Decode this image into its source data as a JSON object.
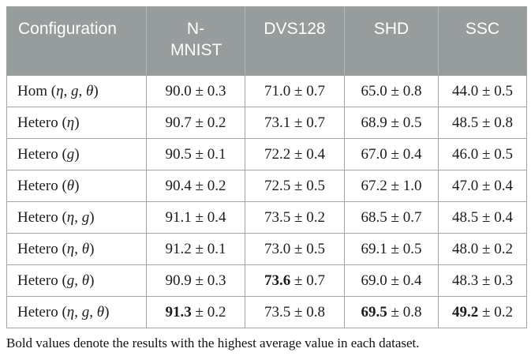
{
  "colors": {
    "header_bg": "#979c9d",
    "header_text": "#ffffff",
    "cell_border": "#a2a2a2",
    "body_text": "#1c1c1c"
  },
  "chart_data": {
    "type": "table",
    "title": "",
    "columns": [
      "Configuration",
      "N-MNIST",
      "DVS128",
      "SHD",
      "SSC"
    ],
    "plus_minus": "±",
    "rows": [
      {
        "config_name": "Hom",
        "config_params": [
          "η",
          "g",
          "θ"
        ],
        "values": [
          {
            "mean": "90.0",
            "err": "0.3",
            "bold": false
          },
          {
            "mean": "71.0",
            "err": "0.7",
            "bold": false
          },
          {
            "mean": "65.0",
            "err": "0.8",
            "bold": false
          },
          {
            "mean": "44.0",
            "err": "0.5",
            "bold": false
          }
        ]
      },
      {
        "config_name": "Hetero",
        "config_params": [
          "η"
        ],
        "values": [
          {
            "mean": "90.7",
            "err": "0.2",
            "bold": false
          },
          {
            "mean": "73.1",
            "err": "0.7",
            "bold": false
          },
          {
            "mean": "68.9",
            "err": "0.5",
            "bold": false
          },
          {
            "mean": "48.5",
            "err": "0.8",
            "bold": false
          }
        ]
      },
      {
        "config_name": "Hetero",
        "config_params": [
          "g"
        ],
        "values": [
          {
            "mean": "90.5",
            "err": "0.1",
            "bold": false
          },
          {
            "mean": "72.2",
            "err": "0.4",
            "bold": false
          },
          {
            "mean": "67.0",
            "err": "0.4",
            "bold": false
          },
          {
            "mean": "46.0",
            "err": "0.5",
            "bold": false
          }
        ]
      },
      {
        "config_name": "Hetero",
        "config_params": [
          "θ"
        ],
        "values": [
          {
            "mean": "90.4",
            "err": "0.2",
            "bold": false
          },
          {
            "mean": "72.5",
            "err": "0.5",
            "bold": false
          },
          {
            "mean": "67.2",
            "err": "1.0",
            "bold": false
          },
          {
            "mean": "47.0",
            "err": "0.4",
            "bold": false
          }
        ]
      },
      {
        "config_name": "Hetero",
        "config_params": [
          "η",
          "g"
        ],
        "values": [
          {
            "mean": "91.1",
            "err": "0.4",
            "bold": false
          },
          {
            "mean": "73.5",
            "err": "0.2",
            "bold": false
          },
          {
            "mean": "68.5",
            "err": "0.7",
            "bold": false
          },
          {
            "mean": "48.5",
            "err": "0.4",
            "bold": false
          }
        ]
      },
      {
        "config_name": "Hetero",
        "config_params": [
          "η",
          "θ"
        ],
        "values": [
          {
            "mean": "91.2",
            "err": "0.1",
            "bold": false
          },
          {
            "mean": "73.0",
            "err": "0.5",
            "bold": false
          },
          {
            "mean": "69.1",
            "err": "0.5",
            "bold": false
          },
          {
            "mean": "48.0",
            "err": "0.2",
            "bold": false
          }
        ]
      },
      {
        "config_name": "Hetero",
        "config_params": [
          "g",
          "θ"
        ],
        "values": [
          {
            "mean": "90.9",
            "err": "0.3",
            "bold": false
          },
          {
            "mean": "73.6",
            "err": "0.7",
            "bold": true
          },
          {
            "mean": "69.0",
            "err": "0.4",
            "bold": false
          },
          {
            "mean": "48.3",
            "err": "0.3",
            "bold": false
          }
        ]
      },
      {
        "config_name": "Hetero",
        "config_params": [
          "η",
          "g",
          "θ"
        ],
        "values": [
          {
            "mean": "91.3",
            "err": "0.2",
            "bold": true
          },
          {
            "mean": "73.5",
            "err": "0.8",
            "bold": false
          },
          {
            "mean": "69.5",
            "err": "0.8",
            "bold": true
          },
          {
            "mean": "49.2",
            "err": "0.2",
            "bold": true
          }
        ]
      }
    ]
  },
  "footnote": "Bold values denote the results with the highest average value in each dataset."
}
